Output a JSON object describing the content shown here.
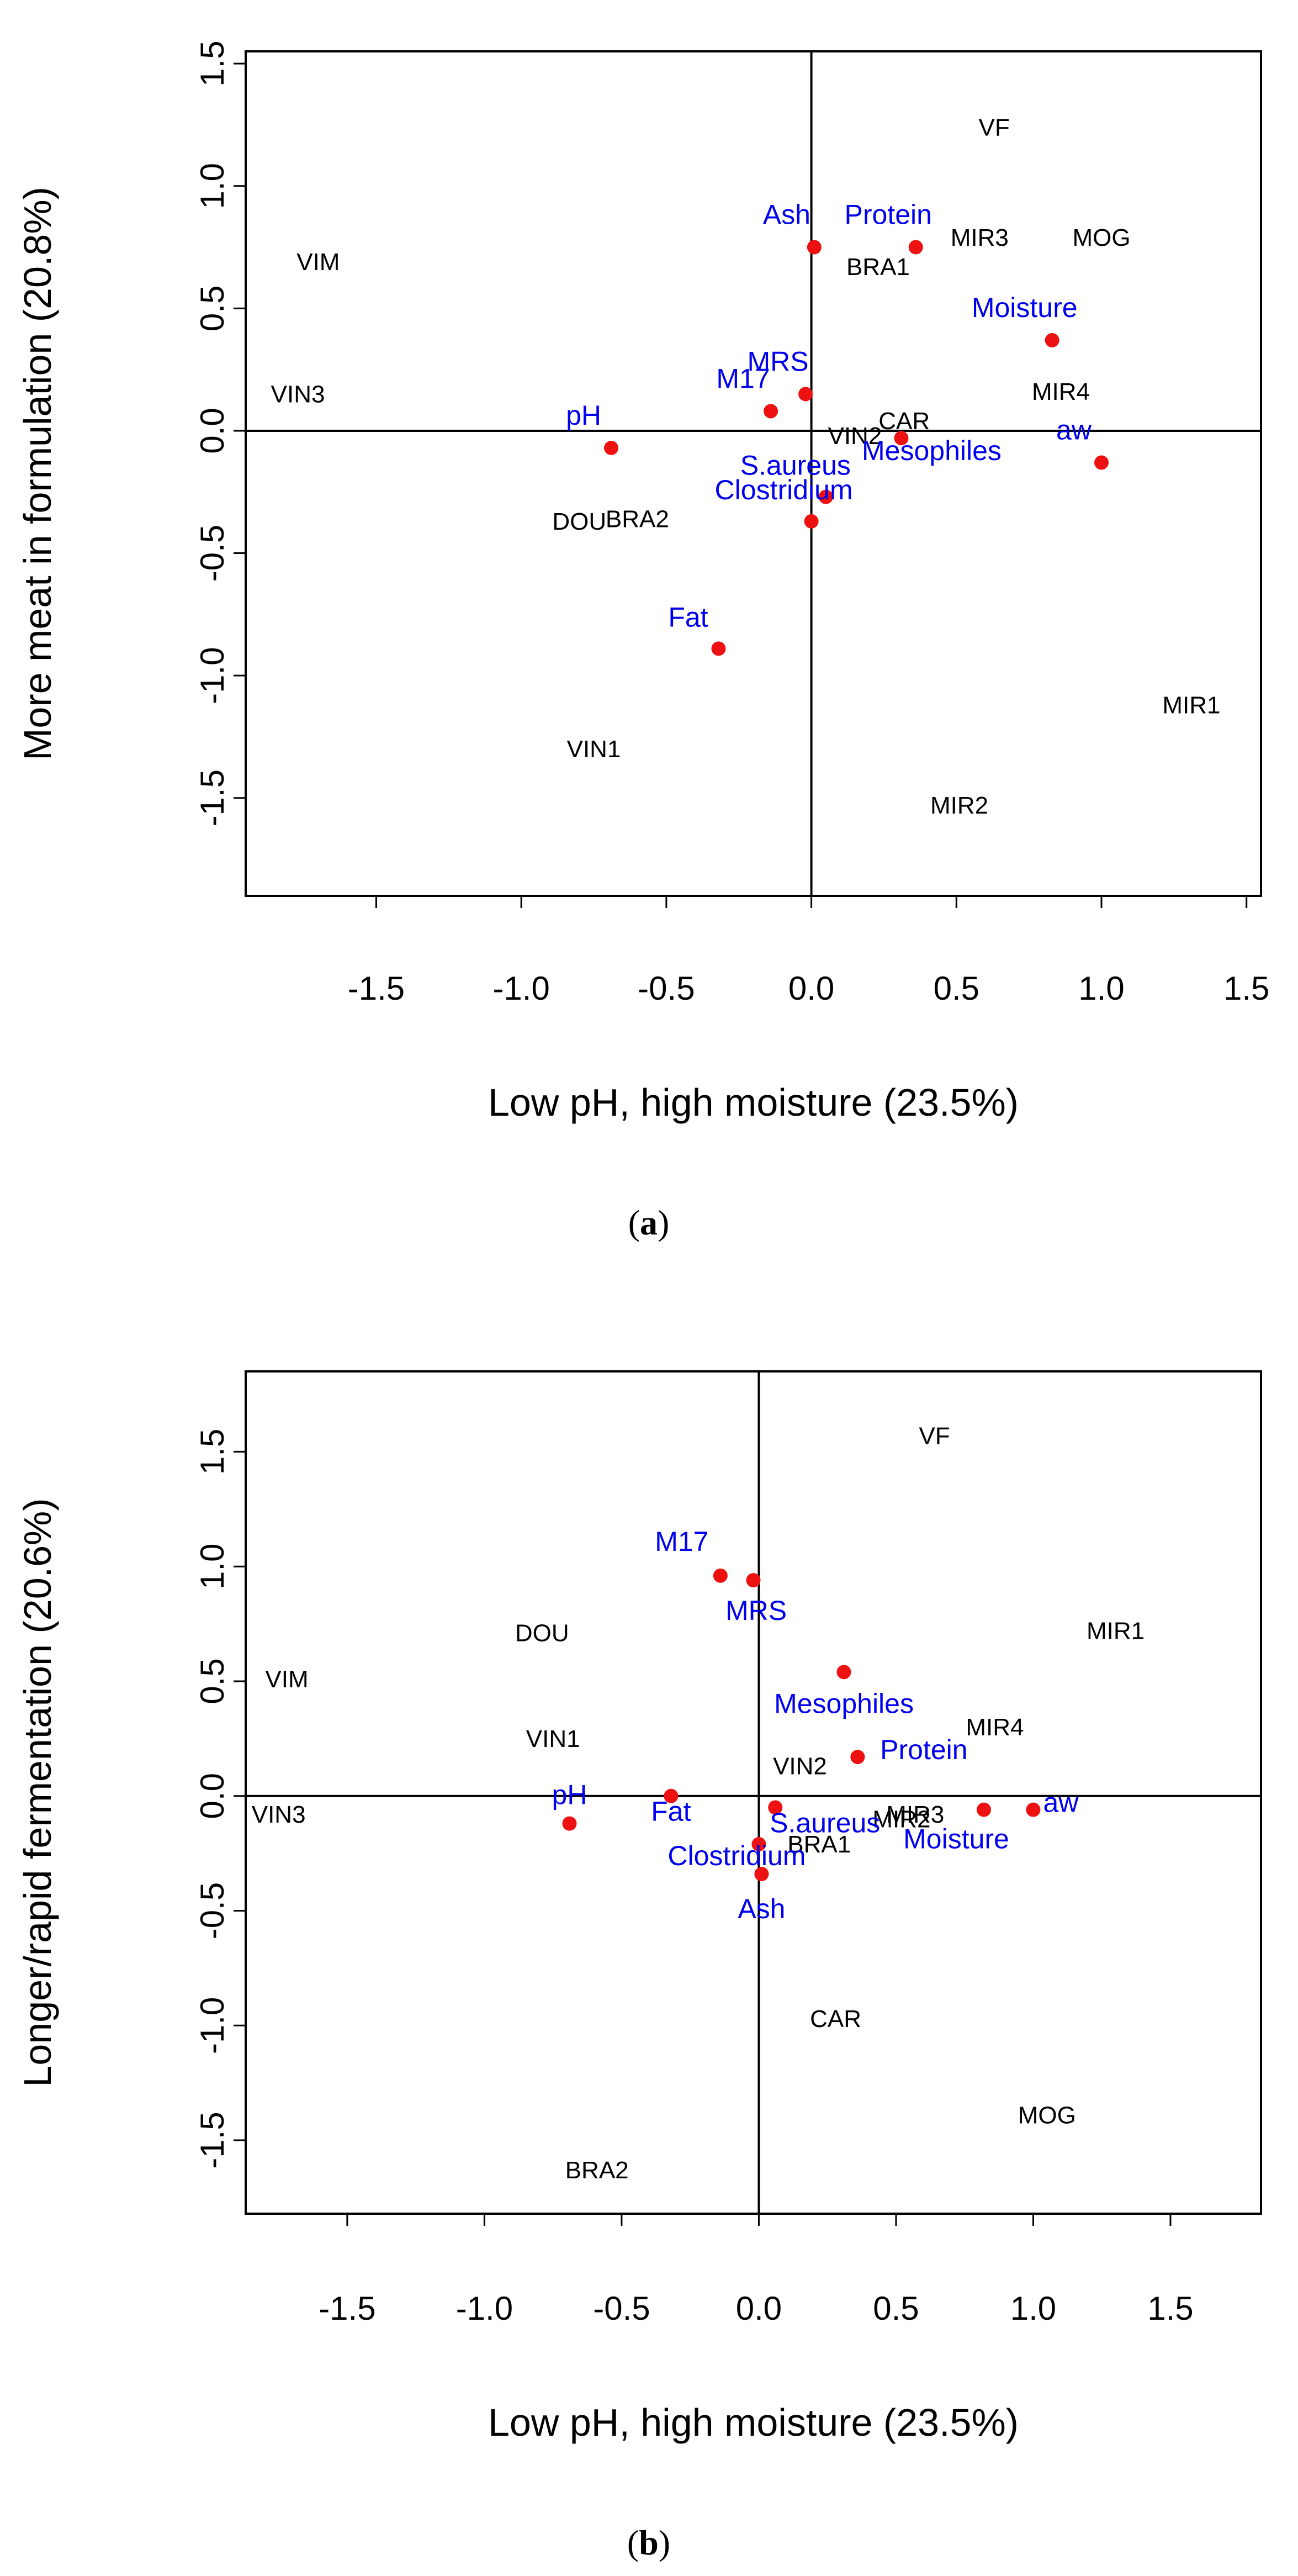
{
  "chart_data": [
    {
      "type": "scatter",
      "panel": "(a)",
      "panel_letter": "a",
      "xlabel": "Low pH, high moisture (23.5%)",
      "ylabel": "More meat in formulation (20.8%)",
      "xlim": [
        -1.95,
        1.55
      ],
      "ylim": [
        -1.9,
        1.55
      ],
      "xticks": [
        -1.5,
        -1.0,
        -0.5,
        0.0,
        0.5,
        1.0,
        1.5
      ],
      "yticks": [
        -1.5,
        -1.0,
        -0.5,
        0.0,
        0.5,
        1.0,
        1.5
      ],
      "observations": [
        {
          "name": "VF",
          "x": 0.63,
          "y": 1.24
        },
        {
          "name": "MIR3",
          "x": 0.58,
          "y": 0.79
        },
        {
          "name": "MOG",
          "x": 1.0,
          "y": 0.79
        },
        {
          "name": "BRA1",
          "x": 0.23,
          "y": 0.67
        },
        {
          "name": "VIM",
          "x": -1.7,
          "y": 0.69
        },
        {
          "name": "VIN3",
          "x": -1.77,
          "y": 0.15
        },
        {
          "name": "MIR4",
          "x": 0.86,
          "y": 0.16
        },
        {
          "name": "VIN2",
          "x": 0.15,
          "y": -0.02
        },
        {
          "name": "CAR",
          "x": 0.32,
          "y": 0.04
        },
        {
          "name": "DOU",
          "x": -0.8,
          "y": -0.37
        },
        {
          "name": "BRA2",
          "x": -0.6,
          "y": -0.36
        },
        {
          "name": "MIR1",
          "x": 1.31,
          "y": -1.12
        },
        {
          "name": "VIN1",
          "x": -0.75,
          "y": -1.3
        },
        {
          "name": "MIR2",
          "x": 0.51,
          "y": -1.53
        }
      ],
      "variables": [
        {
          "name": "Ash",
          "x": 0.01,
          "y": 0.75
        },
        {
          "name": "Protein",
          "x": 0.36,
          "y": 0.75
        },
        {
          "name": "Moisture",
          "x": 0.83,
          "y": 0.37
        },
        {
          "name": "MRS",
          "x": -0.02,
          "y": 0.15
        },
        {
          "name": "M17",
          "x": -0.14,
          "y": 0.08
        },
        {
          "name": "Mesophiles",
          "x": 0.31,
          "y": -0.03
        },
        {
          "name": "aw",
          "x": 1.0,
          "y": -0.13
        },
        {
          "name": "pH",
          "x": -0.69,
          "y": -0.07
        },
        {
          "name": "S.aureus",
          "x": 0.05,
          "y": -0.27
        },
        {
          "name": "Clostridium",
          "x": 0.0,
          "y": -0.37
        },
        {
          "name": "Fat",
          "x": -0.32,
          "y": -0.89
        }
      ]
    },
    {
      "type": "scatter",
      "panel": "(b)",
      "panel_letter": "b",
      "xlabel": "Low pH, high moisture (23.5%)",
      "ylabel": "Longer/rapid fermentation (20.6%)",
      "xlim": [
        -1.87,
        1.83
      ],
      "ylim": [
        -1.82,
        1.85
      ],
      "xticks": [
        -1.5,
        -1.0,
        -0.5,
        0.0,
        0.5,
        1.0,
        1.5
      ],
      "yticks": [
        -1.5,
        -1.0,
        -0.5,
        0.0,
        0.5,
        1.0,
        1.5
      ],
      "observations": [
        {
          "name": "VF",
          "x": 0.64,
          "y": 1.57
        },
        {
          "name": "MIR1",
          "x": 1.3,
          "y": 0.72
        },
        {
          "name": "DOU",
          "x": -0.79,
          "y": 0.71
        },
        {
          "name": "VIM",
          "x": -1.72,
          "y": 0.51
        },
        {
          "name": "VIN1",
          "x": -0.75,
          "y": 0.25
        },
        {
          "name": "MIR4",
          "x": 0.86,
          "y": 0.3
        },
        {
          "name": "VIN2",
          "x": 0.15,
          "y": 0.13
        },
        {
          "name": "VIN3",
          "x": -1.75,
          "y": -0.08
        },
        {
          "name": "MIR3",
          "x": 0.57,
          "y": -0.08
        },
        {
          "name": "MIR2",
          "x": 0.52,
          "y": -0.1
        },
        {
          "name": "BRA1",
          "x": 0.22,
          "y": -0.21
        },
        {
          "name": "CAR",
          "x": 0.28,
          "y": -0.97
        },
        {
          "name": "MOG",
          "x": 1.05,
          "y": -1.39
        },
        {
          "name": "BRA2",
          "x": -0.59,
          "y": -1.63
        }
      ],
      "variables": [
        {
          "name": "M17",
          "x": -0.14,
          "y": 0.96
        },
        {
          "name": "MRS",
          "x": -0.02,
          "y": 0.94
        },
        {
          "name": "Mesophiles",
          "x": 0.31,
          "y": 0.54
        },
        {
          "name": "Protein",
          "x": 0.36,
          "y": 0.17
        },
        {
          "name": "aw",
          "x": 1.0,
          "y": -0.06
        },
        {
          "name": "Moisture",
          "x": 0.82,
          "y": -0.06
        },
        {
          "name": "pH",
          "x": -0.69,
          "y": -0.12
        },
        {
          "name": "Fat",
          "x": -0.32,
          "y": 0.0
        },
        {
          "name": "S.aureus",
          "x": 0.06,
          "y": -0.05
        },
        {
          "name": "Clostridium",
          "x": 0.0,
          "y": -0.21
        },
        {
          "name": "Ash",
          "x": 0.01,
          "y": -0.34
        }
      ]
    }
  ]
}
